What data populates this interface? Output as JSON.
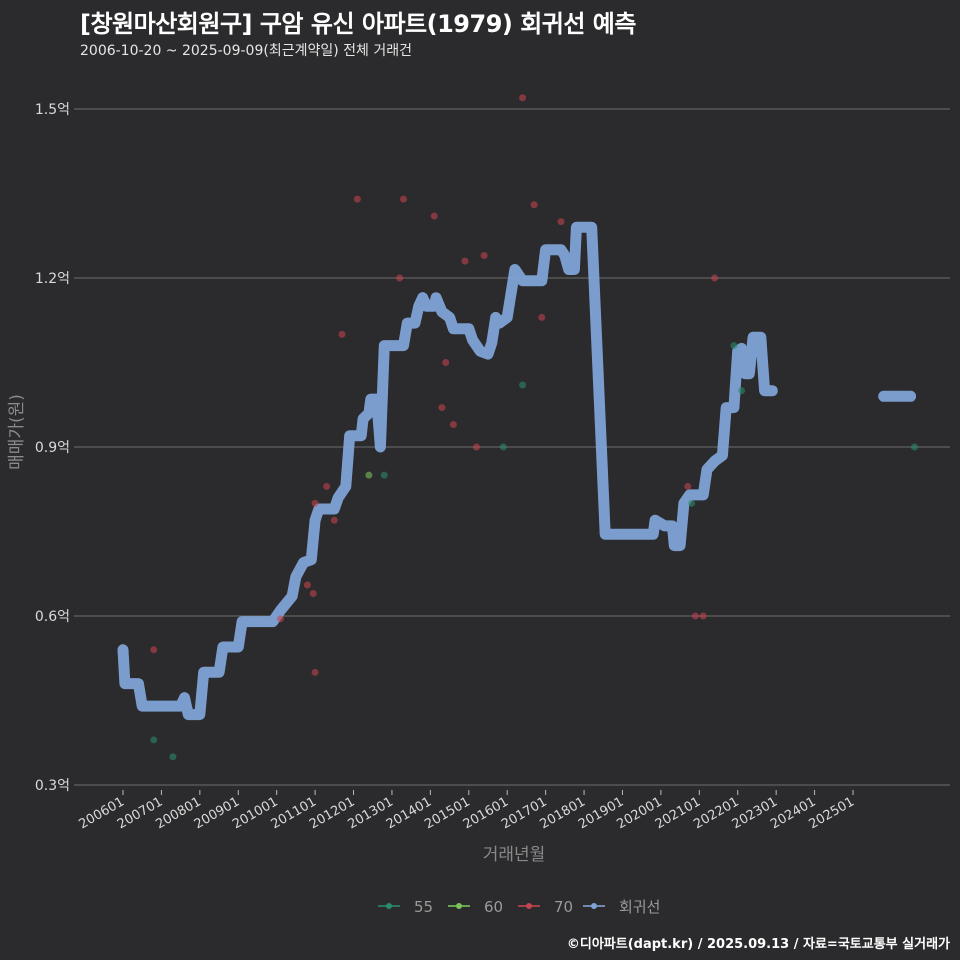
{
  "header": {
    "title": "[창원마산회원구] 구암 유신 아파트(1979) 회귀선 예측",
    "subtitle": "2006-10-20 ~ 2025-09-09(최근계약일) 전체 거래건"
  },
  "caption": "©디아파트(dapt.kr) / 2025.09.13 / 자료=국토교통부 실거래가",
  "colors": {
    "background": "#2b2a2c",
    "grid": "#6e6e6e",
    "s55": "#2a8a6a",
    "s60": "#7ac25a",
    "s70": "#c0454f",
    "regression": "#7fa3d6"
  },
  "chart_data": {
    "type": "scatter",
    "title": "[창원마산회원구] 구암 유신 아파트(1979) 회귀선 예측",
    "subtitle": "2006-10-20 ~ 2025-09-09(최근계약일) 전체 거래건",
    "xlabel": "거래년월",
    "ylabel": "매매가(원)",
    "yticks": [
      "0.3억",
      "0.6억",
      "0.9억",
      "1.2억",
      "1.5억"
    ],
    "ytick_values": [
      0.3,
      0.6,
      0.9,
      1.2,
      1.5
    ],
    "ylim": [
      0.3,
      1.55
    ],
    "xticks": [
      "200601",
      "200701",
      "200801",
      "200901",
      "201001",
      "201101",
      "201201",
      "201301",
      "201401",
      "201501",
      "201601",
      "201701",
      "201801",
      "201901",
      "202001",
      "202101",
      "202201",
      "202301",
      "202401",
      "202501"
    ],
    "xlim": [
      2005.9,
      2027.3
    ],
    "grid": "horizontal",
    "legend_position": "bottom",
    "legend": [
      "55",
      "60",
      "70",
      "회귀선"
    ],
    "series": [
      {
        "name": "55",
        "type": "scatter",
        "points": [
          [
            2006.8,
            0.38
          ],
          [
            2007.3,
            0.35
          ],
          [
            2012.8,
            0.85
          ],
          [
            2015.9,
            0.9
          ],
          [
            2016.4,
            1.01
          ],
          [
            2020.8,
            0.8
          ],
          [
            2021.9,
            1.08
          ],
          [
            2022.1,
            1.0
          ],
          [
            2026.6,
            0.9
          ]
        ]
      },
      {
        "name": "60",
        "type": "scatter",
        "points": [
          [
            2012.4,
            0.85
          ]
        ]
      },
      {
        "name": "70",
        "type": "scatter",
        "points": [
          [
            2006.8,
            0.54
          ],
          [
            2010.1,
            0.595
          ],
          [
            2010.8,
            0.655
          ],
          [
            2010.95,
            0.64
          ],
          [
            2011.0,
            0.8
          ],
          [
            2011.0,
            0.5
          ],
          [
            2011.3,
            0.83
          ],
          [
            2011.5,
            0.77
          ],
          [
            2011.7,
            1.1
          ],
          [
            2012.1,
            1.34
          ],
          [
            2013.2,
            1.2
          ],
          [
            2013.3,
            1.34
          ],
          [
            2014.1,
            1.31
          ],
          [
            2014.3,
            0.97
          ],
          [
            2014.4,
            1.05
          ],
          [
            2014.6,
            0.94
          ],
          [
            2014.9,
            1.23
          ],
          [
            2015.2,
            0.9
          ],
          [
            2015.4,
            1.24
          ],
          [
            2016.4,
            1.52
          ],
          [
            2016.7,
            1.33
          ],
          [
            2016.9,
            1.13
          ],
          [
            2017.4,
            1.3
          ],
          [
            2020.7,
            0.83
          ],
          [
            2020.9,
            0.6
          ],
          [
            2021.1,
            0.6
          ],
          [
            2021.4,
            1.2
          ]
        ]
      },
      {
        "name": "회귀선",
        "type": "line",
        "points": [
          [
            2006.0,
            0.54
          ],
          [
            2006.05,
            0.48
          ],
          [
            2006.4,
            0.48
          ],
          [
            2006.5,
            0.44
          ],
          [
            2007.5,
            0.44
          ],
          [
            2007.6,
            0.455
          ],
          [
            2007.7,
            0.425
          ],
          [
            2008.0,
            0.425
          ],
          [
            2008.1,
            0.5
          ],
          [
            2008.5,
            0.5
          ],
          [
            2008.6,
            0.545
          ],
          [
            2009.0,
            0.545
          ],
          [
            2009.1,
            0.59
          ],
          [
            2009.9,
            0.59
          ],
          [
            2010.1,
            0.61
          ],
          [
            2010.4,
            0.635
          ],
          [
            2010.5,
            0.67
          ],
          [
            2010.7,
            0.695
          ],
          [
            2010.9,
            0.7
          ],
          [
            2011.0,
            0.77
          ],
          [
            2011.1,
            0.79
          ],
          [
            2011.5,
            0.79
          ],
          [
            2011.6,
            0.81
          ],
          [
            2011.8,
            0.83
          ],
          [
            2011.9,
            0.92
          ],
          [
            2012.2,
            0.92
          ],
          [
            2012.25,
            0.95
          ],
          [
            2012.4,
            0.96
          ],
          [
            2012.45,
            0.985
          ],
          [
            2012.6,
            0.985
          ],
          [
            2012.7,
            0.9
          ],
          [
            2012.8,
            1.08
          ],
          [
            2013.3,
            1.08
          ],
          [
            2013.4,
            1.12
          ],
          [
            2013.6,
            1.12
          ],
          [
            2013.7,
            1.15
          ],
          [
            2013.8,
            1.165
          ],
          [
            2013.9,
            1.15
          ],
          [
            2014.1,
            1.15
          ],
          [
            2014.15,
            1.165
          ],
          [
            2014.3,
            1.14
          ],
          [
            2014.5,
            1.13
          ],
          [
            2014.6,
            1.11
          ],
          [
            2015.0,
            1.11
          ],
          [
            2015.1,
            1.09
          ],
          [
            2015.3,
            1.07
          ],
          [
            2015.5,
            1.065
          ],
          [
            2015.6,
            1.085
          ],
          [
            2015.7,
            1.13
          ],
          [
            2015.8,
            1.12
          ],
          [
            2016.0,
            1.13
          ],
          [
            2016.2,
            1.215
          ],
          [
            2016.4,
            1.195
          ],
          [
            2016.9,
            1.195
          ],
          [
            2017.0,
            1.25
          ],
          [
            2017.4,
            1.25
          ],
          [
            2017.5,
            1.24
          ],
          [
            2017.6,
            1.215
          ],
          [
            2017.75,
            1.215
          ],
          [
            2017.8,
            1.29
          ],
          [
            2018.2,
            1.29
          ],
          [
            2018.55,
            0.745
          ],
          [
            2019.8,
            0.745
          ],
          [
            2019.85,
            0.77
          ],
          [
            2020.1,
            0.76
          ],
          [
            2020.3,
            0.76
          ],
          [
            2020.35,
            0.725
          ],
          [
            2020.5,
            0.725
          ],
          [
            2020.6,
            0.8
          ],
          [
            2020.75,
            0.815
          ],
          [
            2021.1,
            0.815
          ],
          [
            2021.2,
            0.86
          ],
          [
            2021.4,
            0.875
          ],
          [
            2021.6,
            0.885
          ],
          [
            2021.7,
            0.97
          ],
          [
            2021.9,
            0.97
          ],
          [
            2022.0,
            1.07
          ],
          [
            2022.1,
            1.075
          ],
          [
            2022.2,
            1.03
          ],
          [
            2022.3,
            1.03
          ],
          [
            2022.4,
            1.095
          ],
          [
            2022.6,
            1.095
          ],
          [
            2022.7,
            1.0
          ],
          [
            2022.9,
            1.0
          ]
        ]
      },
      {
        "name": "회귀선-2",
        "type": "line",
        "points": [
          [
            2025.8,
            0.99
          ],
          [
            2026.5,
            0.99
          ]
        ]
      }
    ]
  },
  "legend": {
    "items": [
      {
        "label": "55",
        "color": "#2a8a6a"
      },
      {
        "label": "60",
        "color": "#7ac25a"
      },
      {
        "label": "70",
        "color": "#c0454f"
      },
      {
        "label": "회귀선",
        "color": "#7fa3d6"
      }
    ]
  }
}
